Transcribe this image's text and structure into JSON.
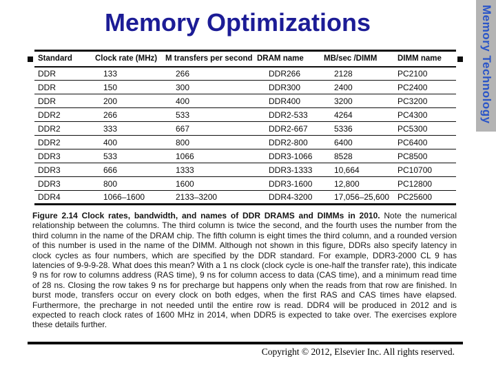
{
  "slide": {
    "title": "Memory Optimizations",
    "sidebar_label": "Memory Technology",
    "copyright": "Copyright © 2012, Elsevier Inc. All rights reserved."
  },
  "table": {
    "columns": [
      "Standard",
      "Clock rate (MHz)",
      "M transfers per second",
      "DRAM name",
      "MB/sec /DIMM",
      "DIMM name"
    ],
    "rows": [
      [
        "DDR",
        "133",
        "266",
        "DDR266",
        "2128",
        "PC2100"
      ],
      [
        "DDR",
        "150",
        "300",
        "DDR300",
        "2400",
        "PC2400"
      ],
      [
        "DDR",
        "200",
        "400",
        "DDR400",
        "3200",
        "PC3200"
      ],
      [
        "DDR2",
        "266",
        "533",
        "DDR2-533",
        "4264",
        "PC4300"
      ],
      [
        "DDR2",
        "333",
        "667",
        "DDR2-667",
        "5336",
        "PC5300"
      ],
      [
        "DDR2",
        "400",
        "800",
        "DDR2-800",
        "6400",
        "PC6400"
      ],
      [
        "DDR3",
        "533",
        "1066",
        "DDR3-1066",
        "8528",
        "PC8500"
      ],
      [
        "DDR3",
        "666",
        "1333",
        "DDR3-1333",
        "10,664",
        "PC10700"
      ],
      [
        "DDR3",
        "800",
        "1600",
        "DDR3-1600",
        "12,800",
        "PC12800"
      ],
      [
        "DDR4",
        "1066–1600",
        "2133–3200",
        "DDR4-3200",
        "17,056–25,600",
        "PC25600"
      ]
    ]
  },
  "caption": {
    "bold": "Figure 2.14  Clock rates, bandwidth, and names of DDR DRAMS and DIMMs in 2010.",
    "body": "Note the numerical relationship between the columns. The third column is twice the second, and the fourth uses the number from the third column in the name of the DRAM chip. The fifth column is eight times the third column, and a rounded version of this number is used in the name of the DIMM. Although not shown in this figure, DDRs also specify latency in clock cycles as four numbers, which are specified by the DDR standard. For example, DDR3-2000 CL 9 has latencies of 9-9-9-28. What does this mean? With a 1 ns clock (clock cycle is one-half the transfer rate), this indicate 9 ns for row to columns address (RAS time), 9 ns for column access to data (CAS time), and a minimum read time of 28 ns. Closing the row takes 9 ns for precharge but happens only when the reads from that row are finished. In burst mode, transfers occur on every clock on both edges, when the first RAS and CAS times have elapsed. Furthermore, the precharge in not needed until the entire row is read. DDR4 will be produced in 2012 and is expected to reach clock rates of 1600 MHz in 2014, when DDR5 is expected to take over. The exercises explore these details further."
  },
  "colors": {
    "title_navy": "#1c1c96",
    "sidebar_blue": "#2a55c8",
    "sidebar_gray": "#b4b4b4",
    "ink_black": "#0d0d0d"
  }
}
